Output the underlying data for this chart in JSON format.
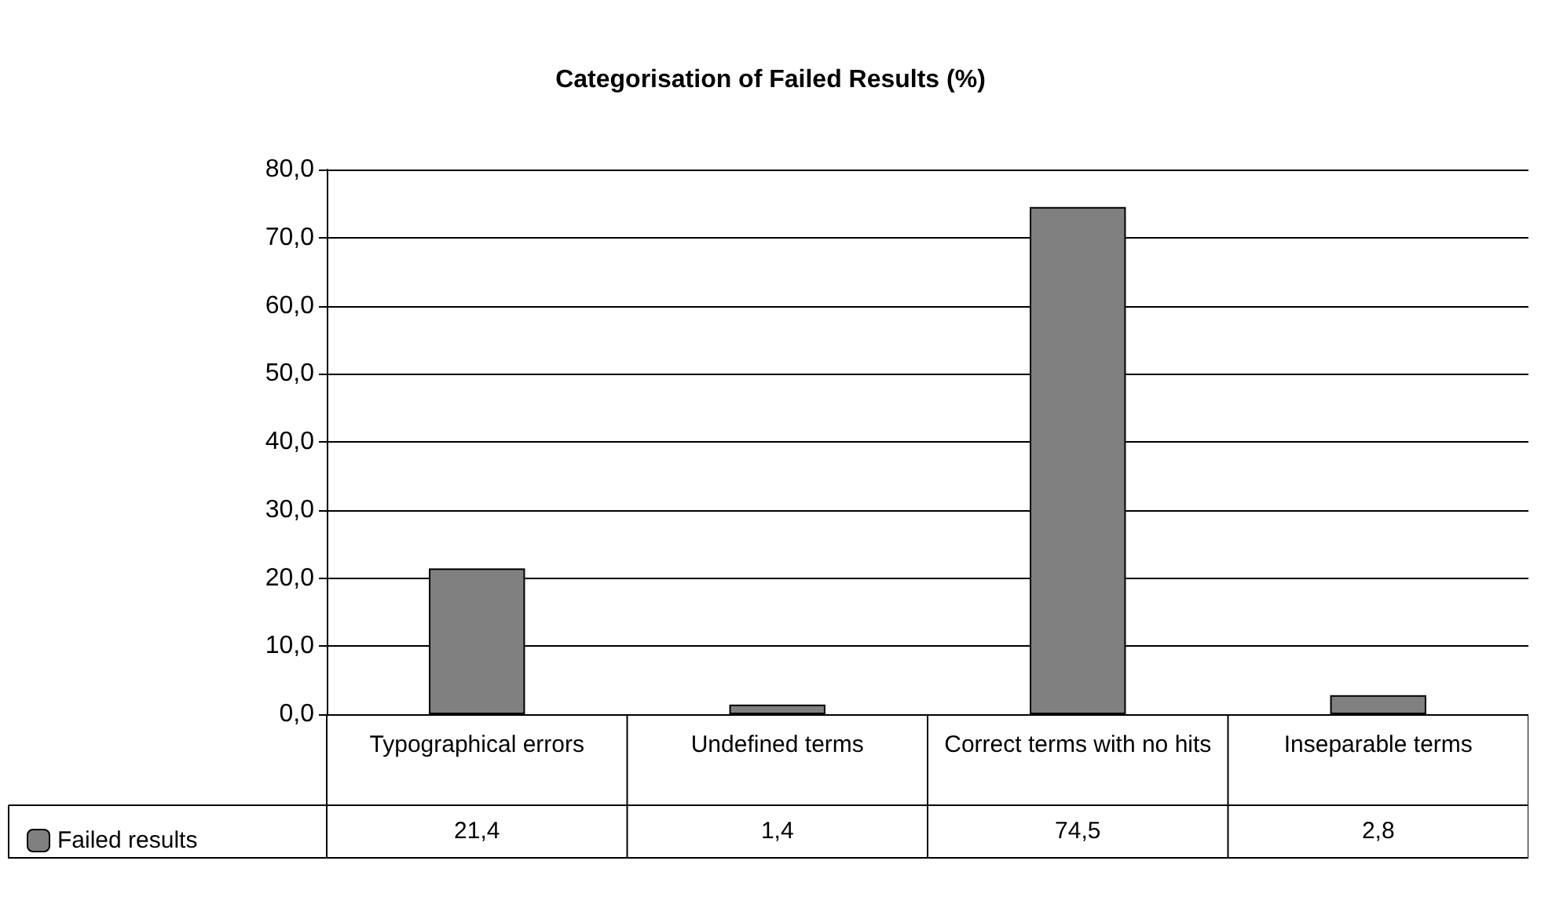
{
  "chart_data": {
    "type": "bar",
    "title": "Categorisation of Failed Results (%)",
    "categories": [
      "Typographical errors",
      "Undefined terms",
      "Correct terms with no hits",
      "Inseparable terms"
    ],
    "series": [
      {
        "name": "Failed results",
        "color": "#808080",
        "values": [
          21.4,
          1.4,
          74.5,
          2.8
        ],
        "value_labels": [
          "21,4",
          "1,4",
          "74,5",
          "2,8"
        ]
      }
    ],
    "ylim": [
      0,
      80
    ],
    "yticks": [
      {
        "value": 0,
        "label": "0,0"
      },
      {
        "value": 10,
        "label": "10,0"
      },
      {
        "value": 20,
        "label": "20,0"
      },
      {
        "value": 30,
        "label": "30,0"
      },
      {
        "value": 40,
        "label": "40,0"
      },
      {
        "value": 50,
        "label": "50,0"
      },
      {
        "value": 60,
        "label": "60,0"
      },
      {
        "value": 70,
        "label": "70,0"
      },
      {
        "value": 80,
        "label": "80,0"
      }
    ],
    "grid": "y",
    "legend": "bottom left"
  }
}
